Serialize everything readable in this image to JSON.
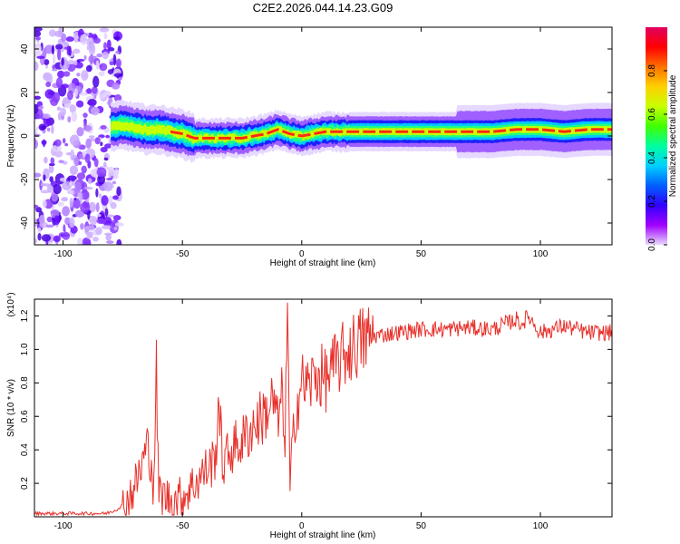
{
  "title": "C2E2.2026.044.14.23.G09",
  "chart_data": [
    {
      "type": "heatmap",
      "xlabel": "Height of straight line (km)",
      "ylabel": "Frequency (Hz)",
      "xlim": [
        -112,
        130
      ],
      "ylim": [
        -50,
        50
      ],
      "xticks": [
        -100,
        -50,
        0,
        50,
        100
      ],
      "yticks": [
        -40,
        -20,
        0,
        20,
        40
      ],
      "colorbar": {
        "label": "Normalized spectral amplitude",
        "range": [
          0,
          1
        ],
        "ticks": [
          "0.0",
          "0.2",
          "0.4",
          "0.6",
          "0.8"
        ],
        "colors": [
          "#e8d8ff",
          "#a000ff",
          "#3000ff",
          "#0060ff",
          "#00d0ff",
          "#00ffa0",
          "#40ff00",
          "#c8ff00",
          "#ffd000",
          "#ff7000",
          "#ff0000",
          "#e00060"
        ]
      },
      "noise_region": {
        "x_range": [
          -112,
          -80
        ],
        "freq_range": [
          -50,
          50
        ]
      },
      "ridge": {
        "x": [
          -80,
          -75,
          -70,
          -65,
          -60,
          -55,
          -50,
          -45,
          -40,
          -35,
          -30,
          -25,
          -20,
          -15,
          -10,
          -5,
          0,
          5,
          10,
          20,
          40,
          60,
          70,
          80,
          90,
          100,
          110,
          120,
          130
        ],
        "freq": [
          4,
          5,
          4,
          3,
          3,
          2,
          1,
          -1,
          -1,
          -1,
          -1,
          -1,
          0,
          1,
          3,
          1,
          0,
          1,
          2,
          2,
          2,
          2,
          2,
          2,
          3,
          3,
          2,
          3,
          3
        ]
      }
    },
    {
      "type": "line",
      "xlabel": "Height of straight line (km)",
      "ylabel": "SNR (10 * v/v)",
      "y_multiplier": "(x10⁴)",
      "xlim": [
        -112,
        130
      ],
      "ylim": [
        0,
        1.3
      ],
      "xticks": [
        -100,
        -50,
        0,
        50,
        100
      ],
      "yticks": [
        0.2,
        0.4,
        0.6,
        0.8,
        1.0,
        1.2
      ],
      "color": "#e8302a",
      "x": [
        -112,
        -100,
        -90,
        -82,
        -78,
        -74,
        -70,
        -67,
        -65,
        -63,
        -62,
        -61,
        -60,
        -55,
        -50,
        -45,
        -40,
        -36,
        -35,
        -33,
        -30,
        -25,
        -20,
        -15,
        -12,
        -10,
        -8,
        -7,
        -6,
        -5,
        -3,
        0,
        3,
        6,
        10,
        15,
        20,
        25,
        30,
        40,
        50,
        60,
        70,
        80,
        85,
        90,
        92,
        95,
        100,
        105,
        110,
        120,
        130
      ],
      "y": [
        0.02,
        0.02,
        0.02,
        0.02,
        0.04,
        0.08,
        0.18,
        0.3,
        0.42,
        0.35,
        0.1,
        0.95,
        0.15,
        0.1,
        0.12,
        0.2,
        0.28,
        0.35,
        0.72,
        0.3,
        0.4,
        0.45,
        0.55,
        0.62,
        0.7,
        0.55,
        0.75,
        0.4,
        1.3,
        0.15,
        0.6,
        0.8,
        0.78,
        0.85,
        0.82,
        0.92,
        1.0,
        1.05,
        1.08,
        1.1,
        1.12,
        1.12,
        1.13,
        1.12,
        1.15,
        1.18,
        1.15,
        1.2,
        1.1,
        1.12,
        1.14,
        1.1,
        1.1
      ]
    }
  ]
}
